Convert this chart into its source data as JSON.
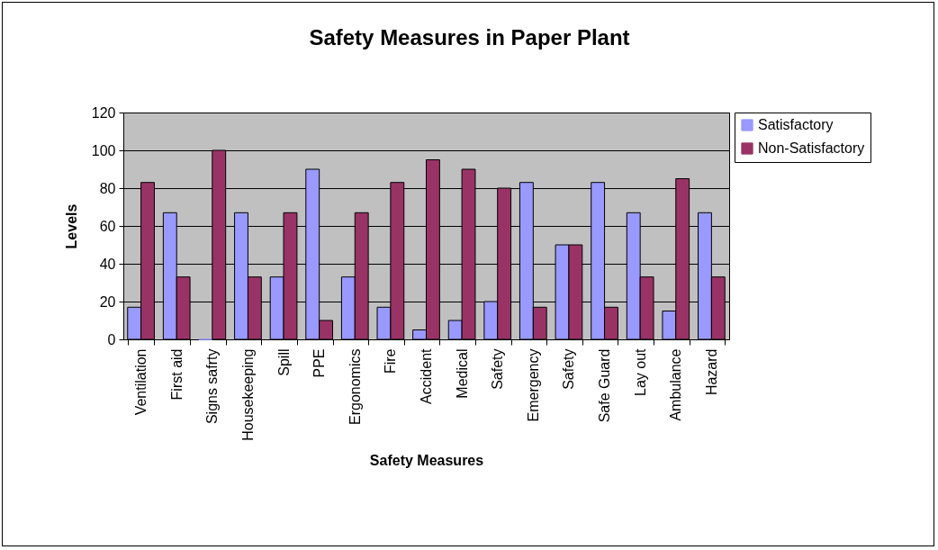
{
  "chart_data": {
    "type": "bar",
    "title": "Safety Measures in Paper Plant",
    "xlabel": "Safety Measures",
    "ylabel": "Levels",
    "categories": [
      "Ventilation",
      "First aid",
      "Signs safrty",
      "Housekeeping",
      "Spill",
      "PPE",
      "Ergonomics",
      "Fire",
      "Accident",
      "Medical",
      "Safety",
      "Emergency",
      "Safety",
      "Safe Guard",
      "Lay out",
      "Ambulance",
      "Hazard"
    ],
    "series": [
      {
        "name": "Satisfactory",
        "color": "#9999ff",
        "values": [
          17,
          67,
          0,
          67,
          33,
          90,
          33,
          17,
          5,
          10,
          20,
          83,
          50,
          83,
          67,
          15,
          67
        ]
      },
      {
        "name": "Non-Satisfactory",
        "color": "#993366",
        "values": [
          83,
          33,
          100,
          33,
          67,
          10,
          67,
          83,
          95,
          90,
          80,
          17,
          50,
          17,
          33,
          85,
          33
        ]
      }
    ],
    "ylim": [
      0,
      120
    ],
    "yticks": [
      0,
      20,
      40,
      60,
      80,
      100,
      120
    ],
    "grid": "y",
    "legend": "right"
  }
}
